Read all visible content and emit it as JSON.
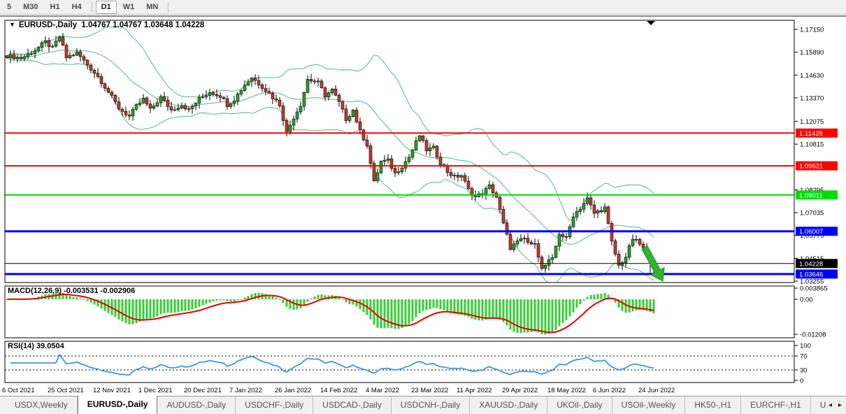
{
  "toolbar": {
    "timeframes": [
      {
        "label": "5",
        "active": false
      },
      {
        "label": "M30",
        "active": false
      },
      {
        "label": "H1",
        "active": false
      },
      {
        "label": "H4",
        "active": false
      },
      {
        "label": "D1",
        "active": true
      },
      {
        "label": "W1",
        "active": false
      },
      {
        "label": "MN",
        "active": false
      }
    ]
  },
  "chart": {
    "title_symbol": "EURUSD-,Daily",
    "title_ohlc": "1.04767 1.04767 1.03648 1.04228",
    "price_axis_ticks": [
      "1.17150",
      "1.15890",
      "1.14630",
      "1.13370",
      "1.12075",
      "1.10815",
      "1.08295",
      "1.07035",
      "1.05775",
      "1.04515",
      "1.03255"
    ],
    "hlines": [
      {
        "price": 1.11428,
        "label": "1.11428",
        "color": "#FF0000",
        "thickness": 2,
        "text_color": "#FFFFFF"
      },
      {
        "price": 1.09621,
        "label": "1.09621",
        "color": "#FF0000",
        "thickness": 2,
        "text_color": "#FFFFFF"
      },
      {
        "price": 1.08011,
        "label": "1.08011",
        "color": "#00DC00",
        "thickness": 2,
        "text_color": "#FFFFFF"
      },
      {
        "price": 1.06007,
        "label": "1.06007",
        "color": "#0000FF",
        "thickness": 3,
        "text_color": "#FFFFFF"
      },
      {
        "price": 1.04228,
        "label": "1.04228",
        "color": "#000000",
        "thickness": 1,
        "text_color": "#FFFFFF"
      },
      {
        "price": 1.03646,
        "label": "1.03646",
        "color": "#0000FF",
        "thickness": 3,
        "text_color": "#FFFFFF"
      }
    ],
    "price_path_anchors": [
      [
        0,
        1.157
      ],
      [
        4,
        1.1555
      ],
      [
        8,
        1.16
      ],
      [
        11,
        1.1645
      ],
      [
        13,
        1.161
      ],
      [
        15,
        1.1675
      ],
      [
        17,
        1.156
      ],
      [
        20,
        1.1585
      ],
      [
        23,
        1.152
      ],
      [
        26,
        1.1455
      ],
      [
        29,
        1.137
      ],
      [
        32,
        1.128
      ],
      [
        35,
        1.1235
      ],
      [
        37,
        1.129
      ],
      [
        39,
        1.133
      ],
      [
        41,
        1.127
      ],
      [
        44,
        1.134
      ],
      [
        47,
        1.127
      ],
      [
        50,
        1.13
      ],
      [
        52,
        1.127
      ],
      [
        55,
        1.133
      ],
      [
        58,
        1.137
      ],
      [
        61,
        1.135
      ],
      [
        63,
        1.13
      ],
      [
        65,
        1.133
      ],
      [
        68,
        1.141
      ],
      [
        70,
        1.145
      ],
      [
        73,
        1.14
      ],
      [
        76,
        1.134
      ],
      [
        78,
        1.13
      ],
      [
        80,
        1.1145
      ],
      [
        82,
        1.123
      ],
      [
        84,
        1.13
      ],
      [
        86,
        1.144
      ],
      [
        89,
        1.142
      ],
      [
        91,
        1.135
      ],
      [
        93,
        1.138
      ],
      [
        95,
        1.131
      ],
      [
        97,
        1.122
      ],
      [
        99,
        1.127
      ],
      [
        101,
        1.115
      ],
      [
        103,
        1.108
      ],
      [
        105,
        1.087
      ],
      [
        107,
        1.0985
      ],
      [
        109,
        1.099
      ],
      [
        111,
        1.092
      ],
      [
        113,
        1.096
      ],
      [
        115,
        1.101
      ],
      [
        118,
        1.113
      ],
      [
        120,
        1.105
      ],
      [
        122,
        1.106
      ],
      [
        124,
        1.098
      ],
      [
        126,
        1.093
      ],
      [
        128,
        1.09
      ],
      [
        130,
        1.091
      ],
      [
        132,
        1.083
      ],
      [
        134,
        1.079
      ],
      [
        136,
        1.081
      ],
      [
        138,
        1.085
      ],
      [
        140,
        1.079
      ],
      [
        142,
        1.064
      ],
      [
        144,
        1.051
      ],
      [
        146,
        1.054
      ],
      [
        148,
        1.056
      ],
      [
        150,
        1.052
      ],
      [
        151,
        1.0545
      ],
      [
        153,
        1.039
      ],
      [
        155,
        1.0435
      ],
      [
        156,
        1.0445
      ],
      [
        158,
        1.059
      ],
      [
        160,
        1.056
      ],
      [
        162,
        1.069
      ],
      [
        164,
        1.073
      ],
      [
        166,
        1.078
      ],
      [
        168,
        1.07
      ],
      [
        169,
        1.071
      ],
      [
        171,
        1.073
      ],
      [
        173,
        1.054
      ],
      [
        175,
        1.041
      ],
      [
        177,
        1.046
      ],
      [
        179,
        1.056
      ],
      [
        181,
        1.053
      ],
      [
        183,
        1.048
      ],
      [
        184,
        1.0445
      ],
      [
        185,
        1.0423
      ]
    ],
    "candle_count": 186,
    "dates": [
      "6 Oct 2021",
      "25 Oct 2021",
      "12 Nov 2021",
      "1 Dec 2021",
      "20 Dec 2021",
      "7 Jan 2022",
      "26 Jan 2022",
      "14 Feb 2022",
      "4 Mar 2022",
      "23 Mar 2022",
      "11 Apr 2022",
      "29 Apr 2022",
      "18 May 2022",
      "6 Jun 2022",
      "24 Jun 2022"
    ]
  },
  "macd": {
    "label": "MACD(12,26,9) -0.003531 -0.002906",
    "axis_labels": [
      "0.003865",
      "0.00",
      "-0.01208"
    ]
  },
  "rsi": {
    "label": "RSI(14) 39.0504",
    "axis_labels": [
      [
        "100",
        100
      ],
      [
        "70",
        70
      ],
      [
        "30",
        30
      ],
      [
        "0",
        0
      ]
    ],
    "levels": [
      70,
      30
    ]
  },
  "tabs": [
    {
      "label": "USDX,Weekly",
      "active": false
    },
    {
      "label": "EURUSD-,Daily",
      "active": true
    },
    {
      "label": "AUDUSD-,Daily",
      "active": false
    },
    {
      "label": "USDCHF-,Daily",
      "active": false
    },
    {
      "label": "USDCAD-,Daily",
      "active": false
    },
    {
      "label": "USDCNH-,Daily",
      "active": false
    },
    {
      "label": "XAUUSD-,Daily",
      "active": false
    },
    {
      "label": "UKOil-,Daily",
      "active": false
    },
    {
      "label": "USOil-,Weekly",
      "active": false
    },
    {
      "label": "HK50-,H1",
      "active": false
    },
    {
      "label": "EURCHF-,H1",
      "active": false
    },
    {
      "label": "USOil-,H",
      "active": false
    }
  ],
  "tab_scroll": {
    "left": "◂",
    "right": "▸"
  },
  "annotations": {
    "down_arrow": "sell-pressure-arrow",
    "title_triangle": "▼",
    "shift_marker": "▼"
  },
  "colors": {
    "bull": "#27A22D",
    "bear": "#C23B2E",
    "wick": "#000000",
    "bollinger": "#63BE93",
    "macd_hist": "#35CE35",
    "macd_signal": "#E80000",
    "rsi_line": "#3E96E0",
    "arrow": "#2FB52B"
  }
}
